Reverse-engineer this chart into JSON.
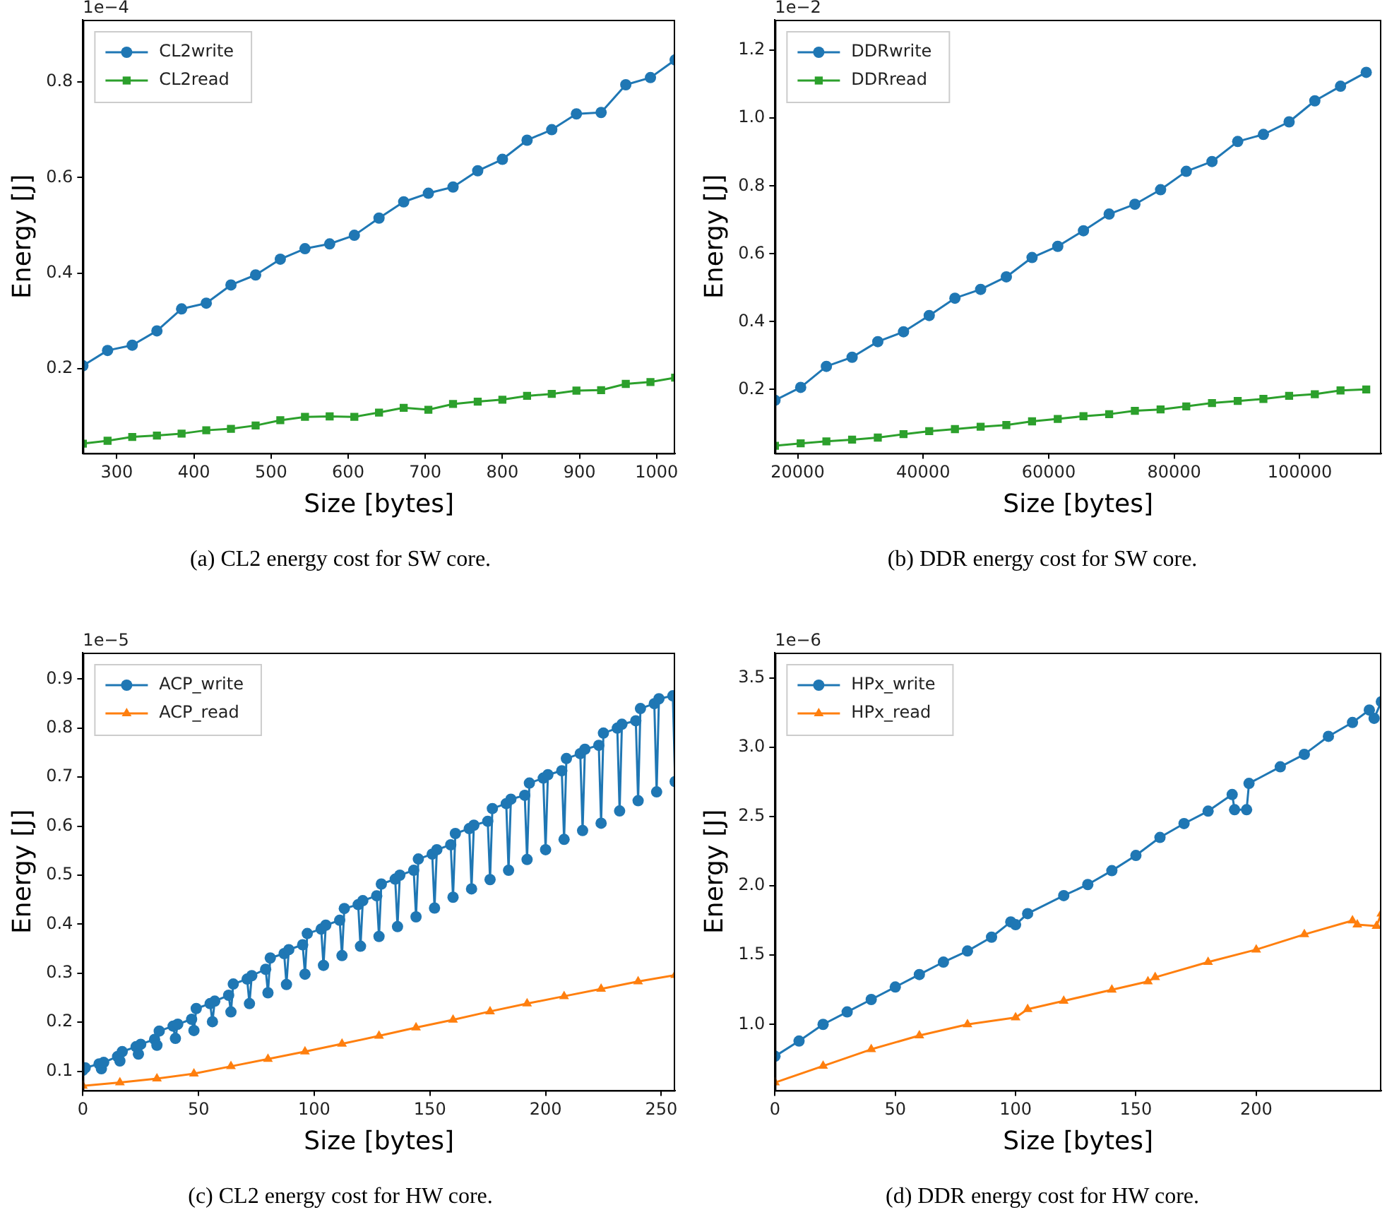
{
  "chart_data": [
    {
      "type": "line",
      "title": "(a) CL2 energy cost for SW core.",
      "xlabel": "Size [bytes]",
      "ylabel": "Energy [J]",
      "annotations": [
        "1e−4"
      ],
      "legend": "top left",
      "x": [
        256,
        288,
        320,
        352,
        384,
        416,
        448,
        480,
        512,
        544,
        576,
        608,
        640,
        672,
        704,
        736,
        768,
        800,
        832,
        864,
        896,
        928,
        960,
        992,
        1024
      ],
      "series": [
        {
          "name": "CL2write",
          "color": "#1f77b4",
          "marker": "circle",
          "values": [
            0.206,
            0.238,
            0.249,
            0.279,
            0.325,
            0.337,
            0.375,
            0.396,
            0.429,
            0.451,
            0.461,
            0.479,
            0.515,
            0.549,
            0.567,
            0.58,
            0.614,
            0.638,
            0.678,
            0.7,
            0.733,
            0.736,
            0.794,
            0.809,
            0.846
          ]
        },
        {
          "name": "CL2read",
          "color": "#2ca02c",
          "marker": "square",
          "values": [
            0.043,
            0.049,
            0.057,
            0.06,
            0.064,
            0.071,
            0.074,
            0.081,
            0.092,
            0.099,
            0.1,
            0.099,
            0.108,
            0.118,
            0.114,
            0.126,
            0.131,
            0.135,
            0.143,
            0.147,
            0.154,
            0.155,
            0.168,
            0.172,
            0.181
          ]
        }
      ],
      "xlim": [
        256,
        1024
      ],
      "xticks": [
        300,
        400,
        500,
        600,
        700,
        800,
        900,
        1000
      ],
      "ylim": [
        0.023,
        0.93
      ],
      "yticks": [
        0.2,
        0.4,
        0.6,
        0.8
      ]
    },
    {
      "type": "line",
      "title": "(b) DDR energy cost for SW core.",
      "xlabel": "Size [bytes]",
      "ylabel": "Energy [J]",
      "annotations": [
        "1e−2"
      ],
      "legend": "top left",
      "x": [
        16384,
        20480,
        24576,
        28672,
        32768,
        36864,
        40960,
        45056,
        49152,
        53248,
        57344,
        61440,
        65536,
        69632,
        73728,
        77824,
        81920,
        86016,
        90112,
        94208,
        98304,
        102400,
        106496,
        110592
      ],
      "series": [
        {
          "name": "DDRwrite",
          "color": "#1f77b4",
          "marker": "circle",
          "values": [
            0.168,
            0.206,
            0.268,
            0.295,
            0.341,
            0.37,
            0.418,
            0.469,
            0.495,
            0.532,
            0.589,
            0.622,
            0.668,
            0.717,
            0.746,
            0.789,
            0.843,
            0.872,
            0.931,
            0.952,
            0.989,
            1.051,
            1.094,
            1.135
          ]
        },
        {
          "name": "DDRread",
          "color": "#2ca02c",
          "marker": "square",
          "values": [
            0.034,
            0.041,
            0.047,
            0.052,
            0.058,
            0.068,
            0.077,
            0.083,
            0.09,
            0.095,
            0.106,
            0.113,
            0.121,
            0.127,
            0.137,
            0.141,
            0.15,
            0.16,
            0.166,
            0.172,
            0.181,
            0.186,
            0.197,
            0.2
          ]
        }
      ],
      "xlim": [
        16384,
        113000
      ],
      "xticks": [
        20000,
        40000,
        60000,
        80000,
        100000
      ],
      "ylim": [
        0.012,
        1.29
      ],
      "yticks": [
        0.2,
        0.4,
        0.6,
        0.8,
        {
          "value": 1,
          "label": "1.0"
        },
        1.2
      ]
    },
    {
      "type": "line",
      "title": "(c) CL2 energy cost for HW core.",
      "xlabel": "Size [bytes]",
      "ylabel": "Energy [J]",
      "annotations": [
        "1e−5"
      ],
      "legend": "top left",
      "series": [
        {
          "name": "ACP_write",
          "color": "#1f77b4",
          "marker": "circle",
          "x": [
            0,
            1,
            7,
            8,
            9,
            15,
            16,
            17,
            23,
            24,
            25,
            31,
            32,
            33,
            39,
            40,
            41,
            47,
            48,
            49,
            55,
            56,
            57,
            63,
            64,
            65,
            71,
            72,
            73,
            79,
            80,
            81,
            87,
            88,
            89,
            95,
            96,
            97,
            103,
            104,
            105,
            111,
            112,
            113,
            119,
            120,
            121,
            127,
            128,
            129,
            135,
            136,
            137,
            143,
            144,
            145,
            151,
            152,
            153,
            159,
            160,
            161,
            167,
            168,
            169,
            175,
            176,
            177,
            183,
            184,
            185,
            191,
            192,
            193,
            199,
            200,
            201,
            207,
            208,
            209,
            215,
            216,
            217,
            223,
            224,
            225,
            231,
            232,
            233,
            239,
            240,
            241,
            247,
            248,
            249,
            255,
            256
          ],
          "values": [
            0.102,
            0.107,
            0.115,
            0.105,
            0.118,
            0.13,
            0.121,
            0.14,
            0.15,
            0.135,
            0.155,
            0.165,
            0.153,
            0.182,
            0.192,
            0.167,
            0.196,
            0.206,
            0.183,
            0.228,
            0.238,
            0.201,
            0.243,
            0.255,
            0.221,
            0.278,
            0.288,
            0.238,
            0.295,
            0.308,
            0.26,
            0.331,
            0.34,
            0.277,
            0.348,
            0.358,
            0.298,
            0.381,
            0.39,
            0.316,
            0.398,
            0.408,
            0.336,
            0.432,
            0.44,
            0.355,
            0.448,
            0.458,
            0.375,
            0.482,
            0.492,
            0.395,
            0.5,
            0.51,
            0.415,
            0.533,
            0.543,
            0.433,
            0.552,
            0.562,
            0.455,
            0.585,
            0.595,
            0.472,
            0.602,
            0.61,
            0.491,
            0.636,
            0.646,
            0.51,
            0.655,
            0.663,
            0.532,
            0.688,
            0.698,
            0.552,
            0.705,
            0.713,
            0.573,
            0.738,
            0.748,
            0.591,
            0.757,
            0.765,
            0.606,
            0.79,
            0.8,
            0.631,
            0.808,
            0.815,
            0.652,
            0.84,
            0.85,
            0.67,
            0.86,
            0.866,
            0.691
          ]
        },
        {
          "name": "ACP_read",
          "color": "#ff7f0e",
          "marker": "triangle",
          "x": [
            0,
            16,
            32,
            48,
            64,
            80,
            96,
            112,
            128,
            144,
            160,
            176,
            192,
            208,
            224,
            240,
            256
          ],
          "values": [
            0.07,
            0.077,
            0.085,
            0.095,
            0.11,
            0.125,
            0.14,
            0.156,
            0.172,
            0.189,
            0.205,
            0.222,
            0.238,
            0.253,
            0.268,
            0.283,
            0.296
          ]
        }
      ],
      "xlim": [
        0,
        256
      ],
      "xticks": [
        0,
        50,
        100,
        150,
        200,
        250
      ],
      "ylim": [
        0.061,
        0.954
      ],
      "yticks": [
        0.1,
        0.2,
        0.3,
        0.4,
        0.5,
        0.6,
        0.7,
        0.8,
        0.9
      ]
    },
    {
      "type": "line",
      "title": "(d) DDR energy cost for HW core.",
      "xlabel": "Size [bytes]",
      "ylabel": "Energy [J]",
      "annotations": [
        "1e−6"
      ],
      "legend": "top left",
      "series": [
        {
          "name": "HPx_write",
          "color": "#1f77b4",
          "marker": "circle",
          "x": [
            0,
            10,
            20,
            30,
            40,
            50,
            60,
            70,
            80,
            90,
            98,
            100,
            105,
            120,
            130,
            140,
            150,
            160,
            170,
            180,
            190,
            191,
            196,
            197,
            210,
            220,
            230,
            240,
            247,
            249,
            252
          ],
          "values": [
            0.77,
            0.88,
            1.0,
            1.09,
            1.18,
            1.27,
            1.36,
            1.45,
            1.53,
            1.63,
            1.74,
            1.72,
            1.8,
            1.93,
            2.01,
            2.11,
            2.22,
            2.35,
            2.45,
            2.54,
            2.66,
            2.55,
            2.55,
            2.74,
            2.86,
            2.95,
            3.08,
            3.18,
            3.27,
            3.21,
            3.33
          ]
        },
        {
          "name": "HPx_read",
          "color": "#ff7f0e",
          "marker": "triangle",
          "x": [
            0,
            20,
            40,
            60,
            80,
            100,
            105,
            120,
            140,
            155,
            158,
            180,
            200,
            220,
            240,
            242,
            250,
            252
          ],
          "values": [
            0.58,
            0.7,
            0.82,
            0.92,
            1.0,
            1.05,
            1.11,
            1.17,
            1.25,
            1.31,
            1.34,
            1.45,
            1.54,
            1.65,
            1.75,
            1.72,
            1.71,
            1.8
          ]
        }
      ],
      "xlim": [
        0,
        252
      ],
      "xticks": [
        0,
        50,
        100,
        150,
        200
      ],
      "ylim": [
        0.524,
        3.684
      ],
      "yticks": [
        {
          "value": 1,
          "label": "1.0"
        },
        1.5,
        {
          "value": 2,
          "label": "2.0"
        },
        2.5,
        {
          "value": 3,
          "label": "3.0"
        },
        3.5
      ]
    }
  ]
}
